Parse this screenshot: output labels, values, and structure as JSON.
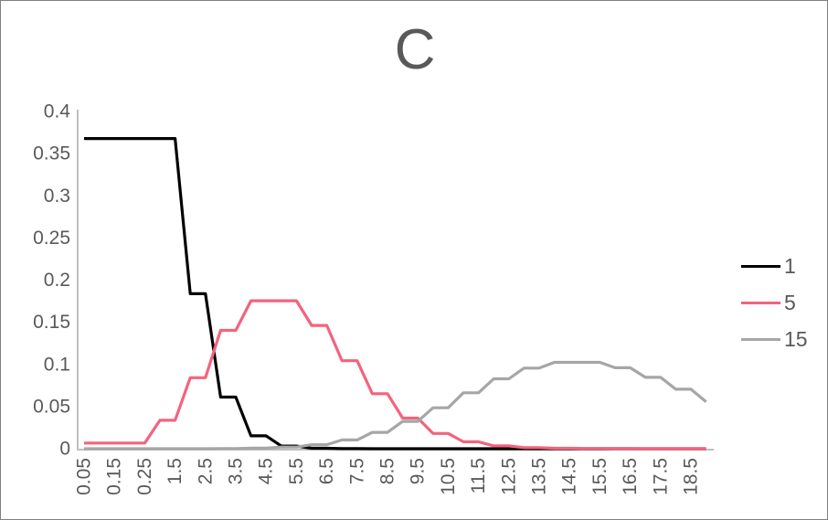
{
  "chart_data": {
    "type": "line",
    "title": "C",
    "title_color": "#595959",
    "axis_color": "#BFBFBF",
    "tick_color": "#595959",
    "grid": false,
    "legend_position": "right",
    "ylim": [
      0,
      0.4
    ],
    "y_tick_labels": [
      "0",
      "0.05",
      "0.1",
      "0.15",
      "0.2",
      "0.25",
      "0.3",
      "0.35",
      "0.4"
    ],
    "x_tick_labels": [
      "0.05",
      "0.15",
      "0.25",
      "1.5",
      "2.5",
      "3.5",
      "4.5",
      "5.5",
      "6.5",
      "7.5",
      "8.5",
      "9.5",
      "10.5",
      "11.5",
      "12.5",
      "13.5",
      "14.5",
      "15.5",
      "16.5",
      "17.5",
      "18.5"
    ],
    "points_per_tick": 2,
    "series": [
      {
        "name": "1",
        "color": "#000000",
        "values": [
          0.3679,
          0.3679,
          0.3679,
          0.3679,
          0.3679,
          0.3679,
          0.3679,
          0.1839,
          0.1839,
          0.0613,
          0.0613,
          0.0153,
          0.0153,
          0.0031,
          0.0031,
          0.0005,
          0.0005,
          0.0001,
          0.0001,
          0,
          0,
          0,
          0,
          0,
          0,
          0,
          0,
          0,
          0,
          0,
          0,
          0,
          0,
          0,
          0,
          0,
          0,
          0,
          0,
          0,
          0,
          0
        ]
      },
      {
        "name": "5",
        "color": "#F4637D",
        "values": [
          0.0067,
          0.0067,
          0.0067,
          0.0067,
          0.0067,
          0.0337,
          0.0337,
          0.0842,
          0.0842,
          0.1404,
          0.1404,
          0.1755,
          0.1755,
          0.1755,
          0.1755,
          0.1462,
          0.1462,
          0.1044,
          0.1044,
          0.0653,
          0.0653,
          0.0363,
          0.0363,
          0.0181,
          0.0181,
          0.0082,
          0.0082,
          0.0034,
          0.0034,
          0.0013,
          0.0013,
          0.0005,
          0.0005,
          0.0002,
          0.0002,
          0.0001,
          0.0001,
          0,
          0,
          0,
          0,
          0
        ]
      },
      {
        "name": "15",
        "color": "#A6A6A6",
        "values": [
          0,
          0,
          0,
          0,
          0,
          0,
          0,
          0,
          0,
          0.0002,
          0.0002,
          0.0006,
          0.0006,
          0.0019,
          0.0019,
          0.0048,
          0.0048,
          0.0104,
          0.0104,
          0.0194,
          0.0194,
          0.0324,
          0.0324,
          0.0486,
          0.0486,
          0.0663,
          0.0663,
          0.0829,
          0.0829,
          0.0956,
          0.0956,
          0.1024,
          0.1024,
          0.1024,
          0.1024,
          0.096,
          0.096,
          0.0847,
          0.0847,
          0.0706,
          0.0706,
          0.0557
        ]
      }
    ]
  }
}
